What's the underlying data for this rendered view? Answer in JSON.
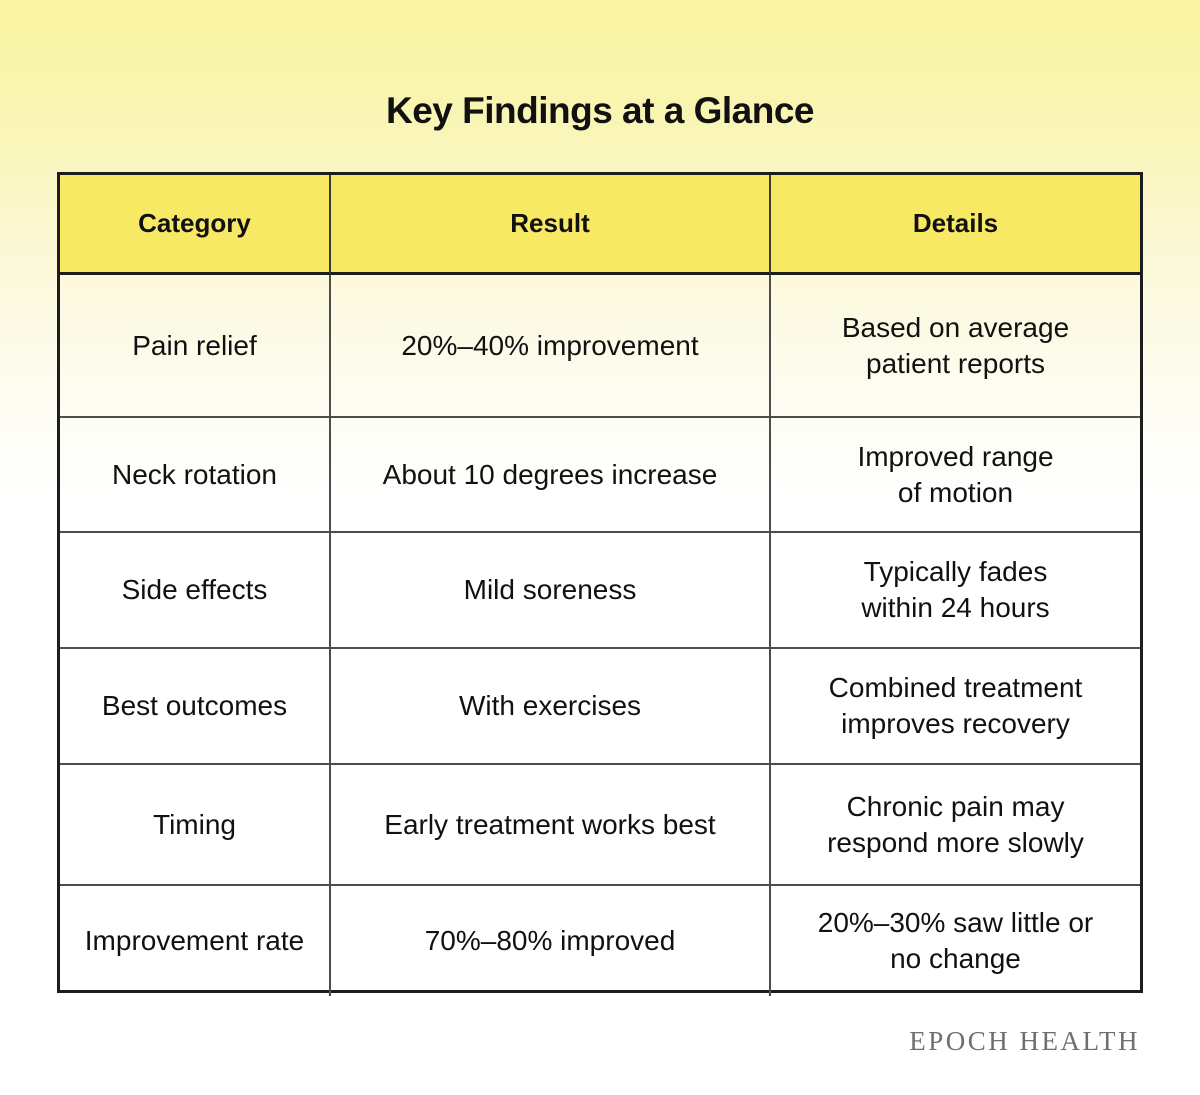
{
  "page": {
    "title": "Key Findings at a Glance",
    "watermark": "EPOCH HEALTH"
  },
  "colors": {
    "background_top": "#f8f49f",
    "background_bottom": "#ffffff",
    "header_fill": "#f8e964",
    "outer_border": "#1d1d1d",
    "grid_line": "#4d4d4d",
    "text": "#111111",
    "watermark_text": "#6e6e73"
  },
  "chart_data": {
    "type": "table",
    "title": "Key Findings at a Glance",
    "columns": [
      "Category",
      "Result",
      "Details"
    ],
    "rows": [
      {
        "category": "Pain relief",
        "result": "20%–40% improvement",
        "details": "Based on average\npatient reports"
      },
      {
        "category": "Neck rotation",
        "result": "About 10 degrees increase",
        "details": "Improved range\nof motion"
      },
      {
        "category": "Side effects",
        "result": "Mild soreness",
        "details": "Typically fades\nwithin 24 hours"
      },
      {
        "category": "Best outcomes",
        "result": "With exercises",
        "details": "Combined treatment\nimproves recovery"
      },
      {
        "category": "Timing",
        "result": "Early treatment works best",
        "details": "Chronic pain may\nrespond more slowly"
      },
      {
        "category": "Improvement rate",
        "result": "70%–80% improved",
        "details": "20%–30% saw little or\nno change"
      }
    ]
  }
}
